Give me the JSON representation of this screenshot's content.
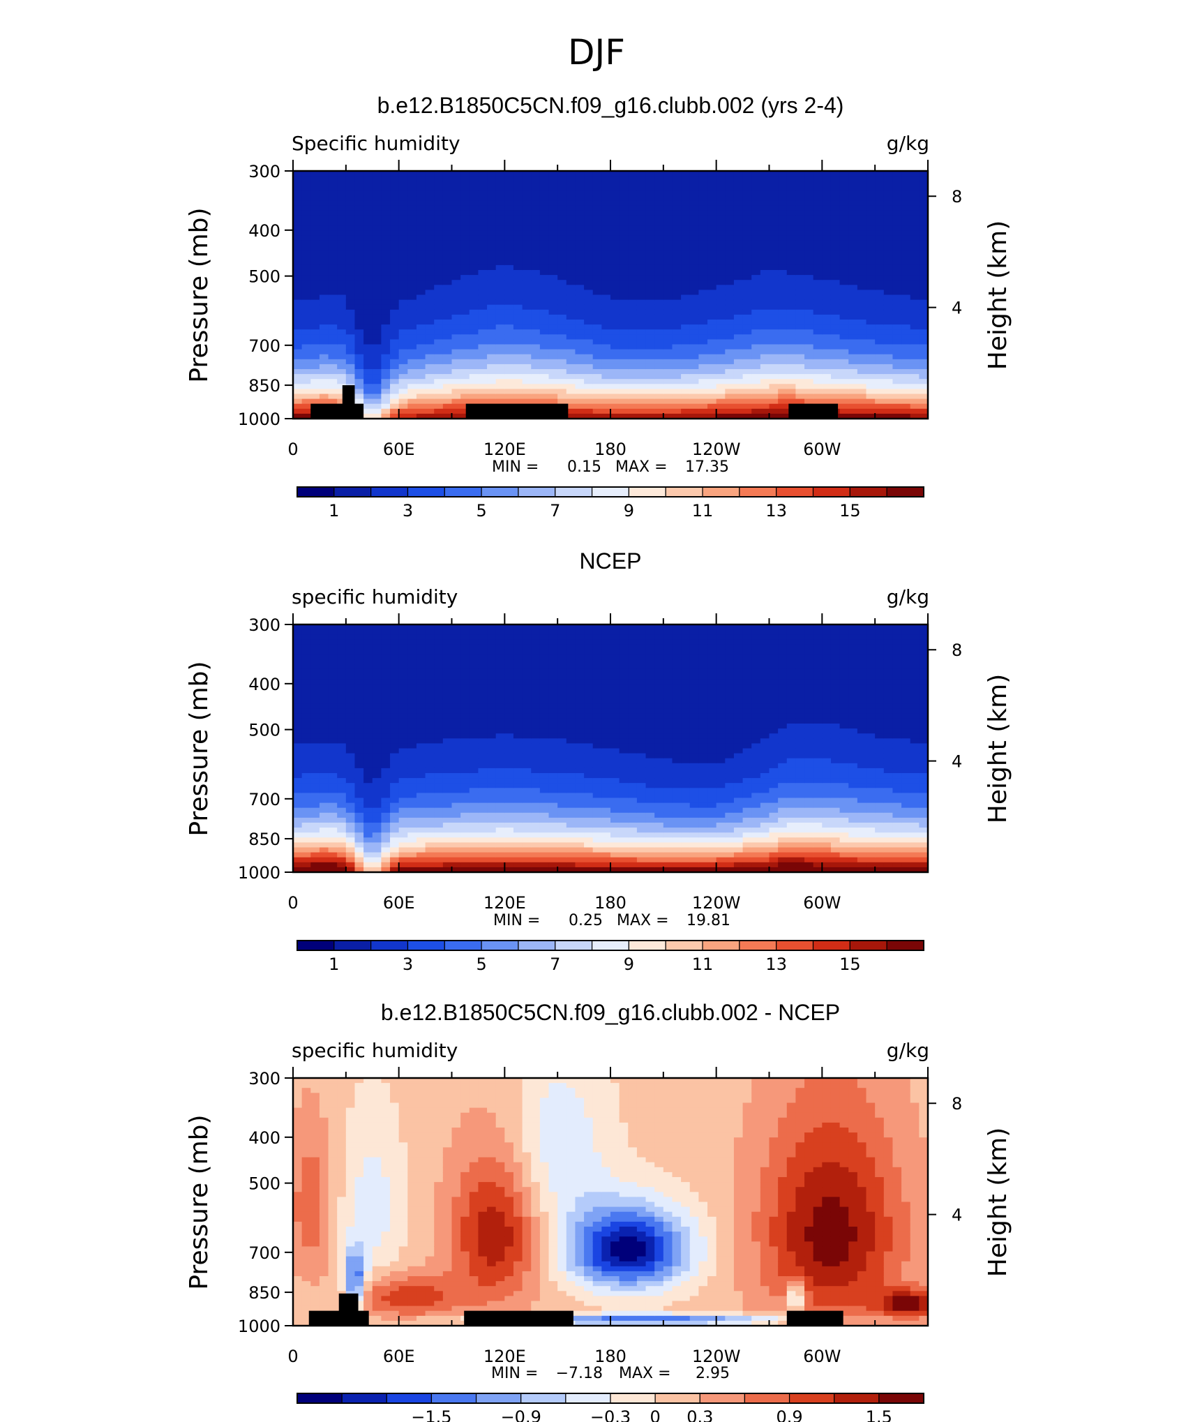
{
  "figure_title": "DJF",
  "colors": {
    "topo_mask": "#000000",
    "abs_scale": [
      "#00007a",
      "#0a1fa6",
      "#1236cc",
      "#1d4fe6",
      "#3a6cf0",
      "#6a93f4",
      "#9cb6f7",
      "#c8d7fa",
      "#e7eefc",
      "#fde9da",
      "#fcc9ad",
      "#f9a47f",
      "#f47a55",
      "#e85030",
      "#d12d16",
      "#a7170a",
      "#7a0606"
    ],
    "diff_scale": [
      "#00007a",
      "#0a22b0",
      "#1a45e2",
      "#4a78f0",
      "#7fa3f5",
      "#b4cbfa",
      "#e3ecfd",
      "#fde7d6",
      "#fbc3a4",
      "#f6987a",
      "#ec6c4b",
      "#d8401f",
      "#b2200c",
      "#7a0606"
    ]
  },
  "chart_data": [
    {
      "type": "heatmap",
      "title": "b.e12.B1850C5CN.f09_g16.clubb.002 (yrs 2-4)",
      "left_label": "Specific humidity",
      "right_label": "g/kg",
      "ylabel": "Pressure (mb)",
      "ylabel_right": "Height (km)",
      "y_ticks": [
        "300",
        "400",
        "500",
        "700",
        "850",
        "1000"
      ],
      "y_tick_values": [
        300,
        400,
        500,
        700,
        850,
        1000
      ],
      "ylim": [
        1000,
        300
      ],
      "right_ticks": [
        "8",
        "4"
      ],
      "right_tick_values": [
        8,
        4
      ],
      "x_ticks": [
        "0",
        "60E",
        "120E",
        "180",
        "120W",
        "60W"
      ],
      "x_tick_values": [
        0,
        60,
        120,
        180,
        240,
        300
      ],
      "xlim": [
        0,
        360
      ],
      "min_label": "MIN =",
      "min_value": "0.15",
      "max_label": "MAX =",
      "max_value": "17.35",
      "colorbar_labels": [
        "1",
        "3",
        "5",
        "7",
        "9",
        "11",
        "13",
        "15"
      ],
      "colorbar_levels": [
        0,
        1,
        2,
        3,
        4,
        5,
        6,
        7,
        8,
        9,
        10,
        11,
        12,
        13,
        14,
        15,
        16
      ],
      "field": {
        "lon": [
          0,
          20,
          30,
          40,
          45,
          60,
          90,
          120,
          150,
          180,
          210,
          240,
          270,
          280,
          300,
          330,
          360
        ],
        "surface": [
          16.5,
          17.0,
          15.5,
          10.0,
          7.5,
          14.5,
          15.5,
          16.0,
          15.5,
          15.0,
          15.2,
          15.8,
          16.5,
          17.2,
          16.5,
          16.0,
          15.8
        ],
        "scale_height": [
          1.5,
          1.55,
          1.6,
          1.25,
          1.2,
          1.55,
          1.8,
          2.0,
          1.85,
          1.6,
          1.55,
          1.7,
          1.9,
          1.85,
          1.8,
          1.65,
          1.55
        ]
      },
      "topography": [
        {
          "lon_start": 10,
          "lon_end": 40,
          "top_p": 930
        },
        {
          "lon_start": 28,
          "lon_end": 35,
          "top_p": 850
        },
        {
          "lon_start": 98,
          "lon_end": 156,
          "top_p": 930
        },
        {
          "lon_start": 281,
          "lon_end": 309,
          "top_p": 930
        }
      ]
    },
    {
      "type": "heatmap",
      "title": "NCEP",
      "left_label": "specific humidity",
      "right_label": "g/kg",
      "ylabel": "Pressure (mb)",
      "ylabel_right": "Height (km)",
      "y_ticks": [
        "300",
        "400",
        "500",
        "700",
        "850",
        "1000"
      ],
      "y_tick_values": [
        300,
        400,
        500,
        700,
        850,
        1000
      ],
      "ylim": [
        1000,
        300
      ],
      "right_ticks": [
        "8",
        "4"
      ],
      "right_tick_values": [
        8,
        4
      ],
      "x_ticks": [
        "0",
        "60E",
        "120E",
        "180",
        "120W",
        "60W"
      ],
      "x_tick_values": [
        0,
        60,
        120,
        180,
        240,
        300
      ],
      "xlim": [
        0,
        360
      ],
      "min_label": "MIN =",
      "min_value": "0.25",
      "max_label": "MAX =",
      "max_value": "19.81",
      "colorbar_labels": [
        "1",
        "3",
        "5",
        "7",
        "9",
        "11",
        "13",
        "15"
      ],
      "colorbar_levels": [
        0,
        1,
        2,
        3,
        4,
        5,
        6,
        7,
        8,
        9,
        10,
        11,
        12,
        13,
        14,
        15,
        16
      ],
      "field": {
        "lon": [
          0,
          20,
          30,
          40,
          45,
          60,
          90,
          120,
          150,
          180,
          210,
          240,
          270,
          280,
          300,
          330,
          360
        ],
        "surface": [
          17.0,
          18.5,
          17.0,
          11.0,
          9.0,
          16.0,
          16.5,
          16.8,
          16.5,
          16.2,
          16.0,
          16.5,
          17.0,
          18.5,
          17.0,
          16.5,
          16.5
        ],
        "scale_height": [
          1.6,
          1.6,
          1.6,
          1.45,
          1.4,
          1.6,
          1.7,
          1.75,
          1.7,
          1.6,
          1.45,
          1.4,
          1.7,
          1.8,
          1.9,
          1.75,
          1.65
        ]
      },
      "topography": []
    },
    {
      "type": "heatmap",
      "title": "b.e12.B1850C5CN.f09_g16.clubb.002 - NCEP",
      "left_label": "specific humidity",
      "right_label": "g/kg",
      "ylabel": "Pressure (mb)",
      "ylabel_right": "Height (km)",
      "y_ticks": [
        "300",
        "400",
        "500",
        "700",
        "850",
        "1000"
      ],
      "y_tick_values": [
        300,
        400,
        500,
        700,
        850,
        1000
      ],
      "ylim": [
        1000,
        300
      ],
      "right_ticks": [
        "8",
        "4"
      ],
      "right_tick_values": [
        8,
        4
      ],
      "x_ticks": [
        "0",
        "60E",
        "120E",
        "180",
        "120W",
        "60W"
      ],
      "x_tick_values": [
        0,
        60,
        120,
        180,
        240,
        300
      ],
      "xlim": [
        0,
        360
      ],
      "min_label": "MIN =",
      "min_value": "−7.18",
      "max_label": "MAX =",
      "max_value": "2.95",
      "colorbar_labels": [
        "−1.5",
        "−0.9",
        "−0.3",
        "0",
        "0.3",
        "0.9",
        "1.5"
      ],
      "colorbar_label_values": [
        -1.5,
        -0.9,
        -0.3,
        0,
        0.3,
        0.9,
        1.5
      ],
      "colorbar_levels": [
        -2.1,
        -1.8,
        -1.5,
        -1.2,
        -0.9,
        -0.6,
        -0.3,
        0,
        0.3,
        0.6,
        0.9,
        1.2,
        1.5,
        1.8,
        2.1
      ],
      "field": {
        "blobs": [
          {
            "lon": 190,
            "p": 690,
            "lon_width": 35,
            "p_width": 140,
            "amplitude": -2.4
          },
          {
            "lon": 150,
            "p": 420,
            "lon_width": 30,
            "p_width": 180,
            "amplitude": -0.7
          },
          {
            "lon": 45,
            "p": 560,
            "lon_width": 18,
            "p_width": 230,
            "amplitude": -0.6
          },
          {
            "lon": 35,
            "p": 800,
            "lon_width": 6,
            "p_width": 120,
            "amplitude": -1.6
          },
          {
            "lon": 285,
            "p": 870,
            "lon_width": 5,
            "p_width": 70,
            "amplitude": -1.2
          },
          {
            "lon": 115,
            "p": 640,
            "lon_width": 25,
            "p_width": 230,
            "amplitude": 1.3
          },
          {
            "lon": 65,
            "p": 870,
            "lon_width": 30,
            "p_width": 90,
            "amplitude": 1.0
          },
          {
            "lon": 305,
            "p": 640,
            "lon_width": 40,
            "p_width": 320,
            "amplitude": 1.5
          },
          {
            "lon": 10,
            "p": 560,
            "lon_width": 12,
            "p_width": 200,
            "amplitude": 0.7
          },
          {
            "lon": 350,
            "p": 900,
            "lon_width": 18,
            "p_width": 60,
            "amplitude": 1.4
          },
          {
            "lon": 200,
            "p": 970,
            "lon_width": 90,
            "p_width": 25,
            "amplitude": -1.5
          }
        ]
      },
      "topography": [
        {
          "lon_start": 9,
          "lon_end": 43,
          "top_p": 930
        },
        {
          "lon_start": 26,
          "lon_end": 37,
          "top_p": 855
        },
        {
          "lon_start": 97,
          "lon_end": 159,
          "top_p": 930
        },
        {
          "lon_start": 280,
          "lon_end": 312,
          "top_p": 930
        }
      ]
    }
  ]
}
